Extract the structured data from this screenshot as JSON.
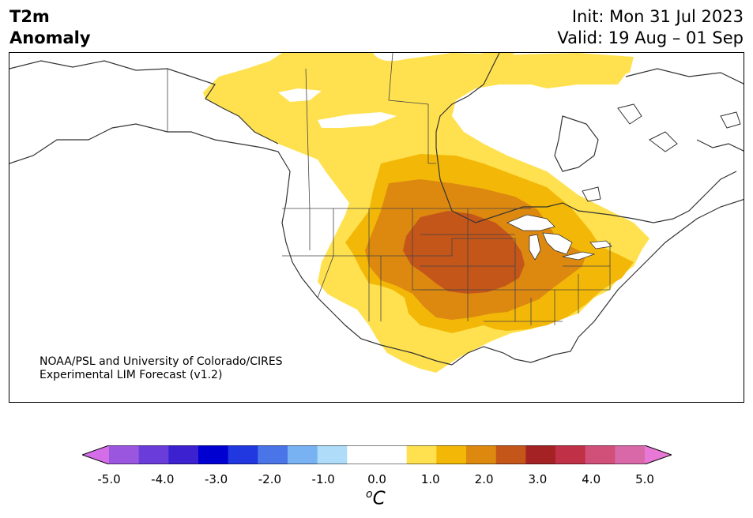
{
  "header": {
    "title_line1": "T2m",
    "title_line2": "Anomaly",
    "init": "Init: Mon 31 Jul 2023",
    "valid": "Valid: 19 Aug – 01 Sep"
  },
  "credit": {
    "line1": "NOAA/PSL and University of Colorado/CIRES",
    "line2": "Experimental LIM Forecast (v1.2)"
  },
  "colorbar": {
    "unit": "C",
    "unit_superscript": "o",
    "tick_labels": [
      "-5.0",
      "-4.0",
      "-3.0",
      "-2.0",
      "-1.0",
      "0.0",
      "1.0",
      "2.0",
      "3.0",
      "4.0",
      "5.0"
    ],
    "colors": [
      "#d36ee8",
      "#9b56e0",
      "#6a3ddb",
      "#3b21d0",
      "#0000d0",
      "#2138e0",
      "#4a75e8",
      "#78b2f2",
      "#aedcf9",
      "#ffffff",
      "#ffffff",
      "#ffe14f",
      "#f3b807",
      "#dd8910",
      "#c4561a",
      "#a52224",
      "#c03047",
      "#d0507a",
      "#d868a8",
      "#e878d6"
    ]
  },
  "map": {
    "anomaly_levels": [
      {
        "min": 0.5,
        "max": 1.0,
        "color": "#ffe14f"
      },
      {
        "min": 1.0,
        "max": 1.5,
        "color": "#f3b807"
      },
      {
        "min": 1.5,
        "max": 2.0,
        "color": "#dd8910"
      },
      {
        "min": 2.0,
        "max": 2.5,
        "color": "#c4561a"
      }
    ],
    "land_line_color": "#333333"
  }
}
